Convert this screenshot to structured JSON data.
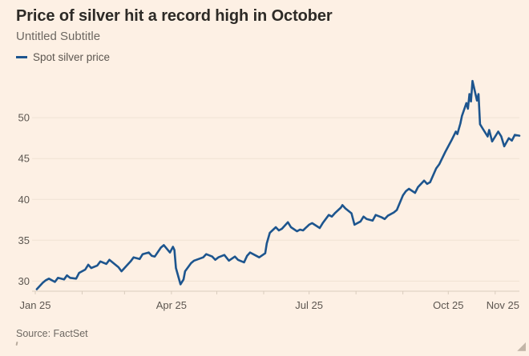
{
  "header": {
    "title": "Price of silver hit a record high in October",
    "subtitle": "Untitled Subtitle"
  },
  "legend": {
    "label": "Spot silver price"
  },
  "source": {
    "text": "Source: FactSet"
  },
  "icons": {
    "resize_handle": "◢"
  },
  "colors": {
    "background": "#fdf0e4",
    "line": "#1d558e",
    "grid": "#f0e2d3",
    "axis_line": "#d9ccbd",
    "title_text": "#2d2a26",
    "muted_text": "#6d6862",
    "axis_text": "#5c5650"
  },
  "chart_data": {
    "type": "line",
    "title": "Price of silver hit a record high in October",
    "subtitle": "Untitled Subtitle",
    "xlabel": "",
    "ylabel": "",
    "ylim": [
      28.76,
      55.6
    ],
    "x_domain": [
      "2025-01-01",
      "2025-11-17"
    ],
    "grid": "horizontal",
    "legend_position": "top-left",
    "yticks": [
      30,
      35,
      40,
      45,
      50
    ],
    "xticks": [
      {
        "date": "2025-01-01",
        "label": "Jan 25",
        "anchor": "middle"
      },
      {
        "date": "2025-04-01",
        "label": "Apr 25",
        "anchor": "middle"
      },
      {
        "date": "2025-07-01",
        "label": "Jul 25",
        "anchor": "middle"
      },
      {
        "date": "2025-10-01",
        "label": "Oct 25",
        "anchor": "middle"
      },
      {
        "date": "2025-11-17",
        "label": "Nov 25",
        "anchor": "end"
      }
    ],
    "month_ticks": [
      "2025-01-01",
      "2025-02-01",
      "2025-03-01",
      "2025-04-01",
      "2025-05-01",
      "2025-06-01",
      "2025-07-01",
      "2025-08-01",
      "2025-09-01",
      "2025-10-01",
      "2025-11-01"
    ],
    "series": [
      {
        "name": "Spot silver price",
        "points": [
          [
            "2025-01-02",
            29.0
          ],
          [
            "2025-01-06",
            29.8
          ],
          [
            "2025-01-08",
            30.1
          ],
          [
            "2025-01-10",
            30.3
          ],
          [
            "2025-01-14",
            29.9
          ],
          [
            "2025-01-16",
            30.4
          ],
          [
            "2025-01-20",
            30.2
          ],
          [
            "2025-01-22",
            30.7
          ],
          [
            "2025-01-24",
            30.4
          ],
          [
            "2025-01-28",
            30.3
          ],
          [
            "2025-01-30",
            31.0
          ],
          [
            "2025-02-03",
            31.4
          ],
          [
            "2025-02-05",
            32.0
          ],
          [
            "2025-02-07",
            31.6
          ],
          [
            "2025-02-11",
            31.9
          ],
          [
            "2025-02-13",
            32.4
          ],
          [
            "2025-02-17",
            32.1
          ],
          [
            "2025-02-19",
            32.6
          ],
          [
            "2025-02-21",
            32.3
          ],
          [
            "2025-02-25",
            31.7
          ],
          [
            "2025-02-27",
            31.2
          ],
          [
            "2025-03-03",
            32.0
          ],
          [
            "2025-03-05",
            32.4
          ],
          [
            "2025-03-07",
            32.9
          ],
          [
            "2025-03-11",
            32.7
          ],
          [
            "2025-03-13",
            33.3
          ],
          [
            "2025-03-17",
            33.5
          ],
          [
            "2025-03-19",
            33.1
          ],
          [
            "2025-03-21",
            33.0
          ],
          [
            "2025-03-25",
            34.1
          ],
          [
            "2025-03-27",
            34.4
          ],
          [
            "2025-03-31",
            33.5
          ],
          [
            "2025-04-02",
            34.2
          ],
          [
            "2025-04-03",
            33.8
          ],
          [
            "2025-04-04",
            31.6
          ],
          [
            "2025-04-07",
            29.6
          ],
          [
            "2025-04-09",
            30.2
          ],
          [
            "2025-04-10",
            31.2
          ],
          [
            "2025-04-14",
            32.2
          ],
          [
            "2025-04-16",
            32.5
          ],
          [
            "2025-04-22",
            32.9
          ],
          [
            "2025-04-24",
            33.3
          ],
          [
            "2025-04-28",
            33.0
          ],
          [
            "2025-04-30",
            32.6
          ],
          [
            "2025-05-02",
            32.9
          ],
          [
            "2025-05-06",
            33.2
          ],
          [
            "2025-05-09",
            32.5
          ],
          [
            "2025-05-13",
            33.0
          ],
          [
            "2025-05-15",
            32.6
          ],
          [
            "2025-05-19",
            32.3
          ],
          [
            "2025-05-21",
            33.1
          ],
          [
            "2025-05-23",
            33.5
          ],
          [
            "2025-05-27",
            33.1
          ],
          [
            "2025-05-29",
            32.9
          ],
          [
            "2025-06-02",
            33.4
          ],
          [
            "2025-06-03",
            34.6
          ],
          [
            "2025-06-05",
            35.9
          ],
          [
            "2025-06-09",
            36.6
          ],
          [
            "2025-06-11",
            36.2
          ],
          [
            "2025-06-13",
            36.4
          ],
          [
            "2025-06-17",
            37.2
          ],
          [
            "2025-06-19",
            36.6
          ],
          [
            "2025-06-23",
            36.1
          ],
          [
            "2025-06-25",
            36.3
          ],
          [
            "2025-06-27",
            36.2
          ],
          [
            "2025-07-01",
            36.9
          ],
          [
            "2025-07-03",
            37.1
          ],
          [
            "2025-07-08",
            36.5
          ],
          [
            "2025-07-10",
            37.1
          ],
          [
            "2025-07-14",
            38.1
          ],
          [
            "2025-07-16",
            37.9
          ],
          [
            "2025-07-18",
            38.3
          ],
          [
            "2025-07-22",
            39.0
          ],
          [
            "2025-07-23",
            39.3
          ],
          [
            "2025-07-25",
            38.9
          ],
          [
            "2025-07-29",
            38.3
          ],
          [
            "2025-07-31",
            36.9
          ],
          [
            "2025-08-04",
            37.3
          ],
          [
            "2025-08-06",
            37.9
          ],
          [
            "2025-08-08",
            37.6
          ],
          [
            "2025-08-12",
            37.4
          ],
          [
            "2025-08-14",
            38.1
          ],
          [
            "2025-08-18",
            37.8
          ],
          [
            "2025-08-20",
            37.6
          ],
          [
            "2025-08-22",
            38.0
          ],
          [
            "2025-08-26",
            38.4
          ],
          [
            "2025-08-28",
            38.7
          ],
          [
            "2025-09-01",
            40.5
          ],
          [
            "2025-09-03",
            41.0
          ],
          [
            "2025-09-05",
            41.3
          ],
          [
            "2025-09-09",
            40.8
          ],
          [
            "2025-09-11",
            41.5
          ],
          [
            "2025-09-15",
            42.3
          ],
          [
            "2025-09-17",
            41.9
          ],
          [
            "2025-09-19",
            42.1
          ],
          [
            "2025-09-23",
            43.8
          ],
          [
            "2025-09-25",
            44.3
          ],
          [
            "2025-09-29",
            45.8
          ],
          [
            "2025-10-01",
            46.5
          ],
          [
            "2025-10-03",
            47.2
          ],
          [
            "2025-10-06",
            48.3
          ],
          [
            "2025-10-07",
            48.0
          ],
          [
            "2025-10-09",
            49.3
          ],
          [
            "2025-10-10",
            50.2
          ],
          [
            "2025-10-13",
            51.8
          ],
          [
            "2025-10-14",
            51.1
          ],
          [
            "2025-10-15",
            52.9
          ],
          [
            "2025-10-16",
            52.0
          ],
          [
            "2025-10-17",
            54.5
          ],
          [
            "2025-10-20",
            52.1
          ],
          [
            "2025-10-21",
            52.9
          ],
          [
            "2025-10-22",
            49.2
          ],
          [
            "2025-10-24",
            48.6
          ],
          [
            "2025-10-27",
            47.7
          ],
          [
            "2025-10-28",
            48.5
          ],
          [
            "2025-10-30",
            47.1
          ],
          [
            "2025-11-03",
            48.3
          ],
          [
            "2025-11-05",
            47.7
          ],
          [
            "2025-11-07",
            46.5
          ],
          [
            "2025-11-10",
            47.5
          ],
          [
            "2025-11-12",
            47.2
          ],
          [
            "2025-11-14",
            47.9
          ],
          [
            "2025-11-17",
            47.8
          ]
        ]
      }
    ]
  }
}
